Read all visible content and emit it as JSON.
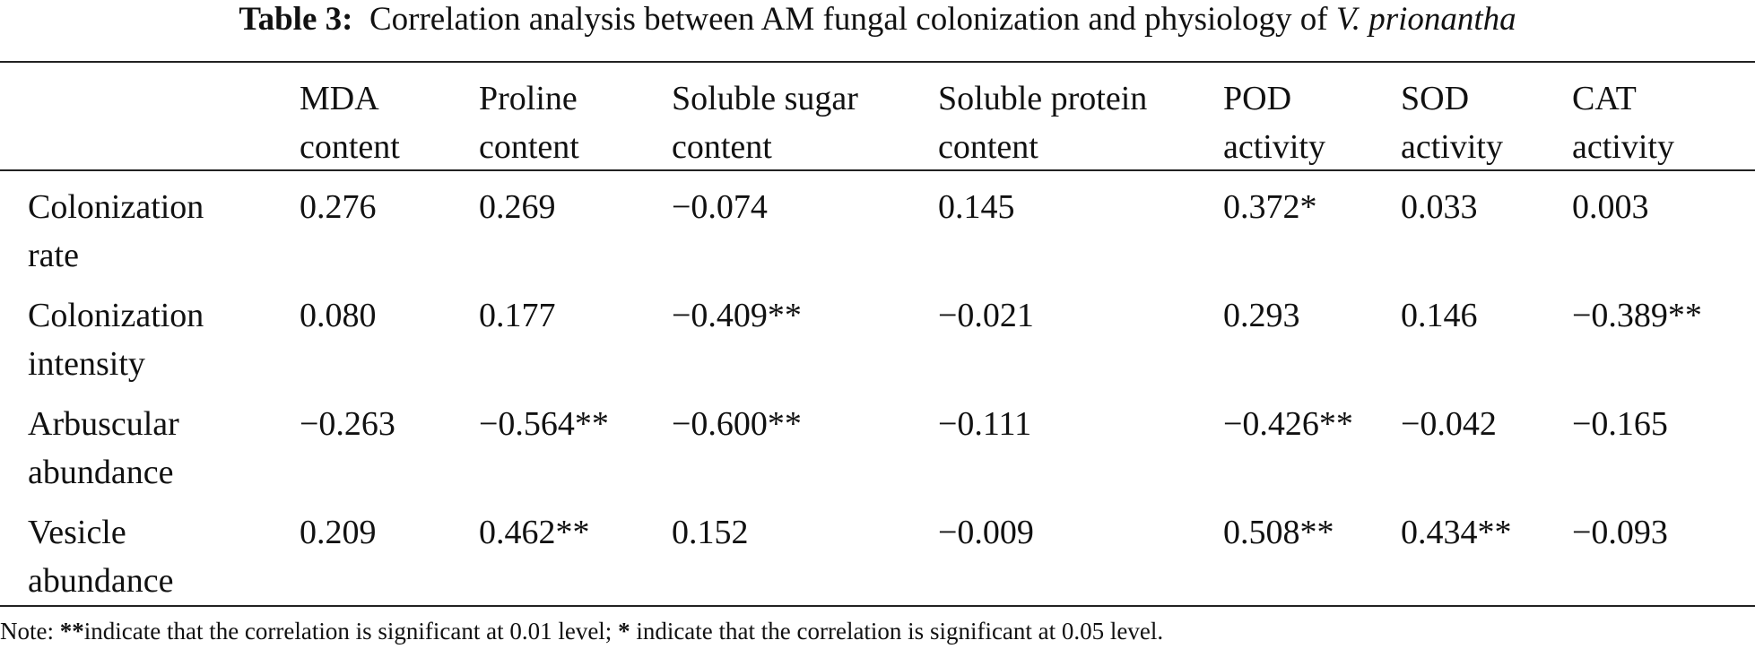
{
  "title": {
    "label": "Table 3:",
    "text": "Correlation analysis between AM fungal colonization and physiology of",
    "species": "V. prionantha"
  },
  "table": {
    "columns": [
      [
        "MDA",
        "content"
      ],
      [
        "Proline",
        "content"
      ],
      [
        "Soluble sugar",
        "content"
      ],
      [
        "Soluble protein",
        "content"
      ],
      [
        "POD",
        "activity"
      ],
      [
        "SOD",
        "activity"
      ],
      [
        "CAT",
        "activity"
      ]
    ],
    "rows": [
      {
        "label": [
          "Colonization",
          "rate"
        ],
        "cells": [
          "0.276",
          "0.269",
          "−0.074",
          "0.145",
          "0.372*",
          "0.033",
          "0.003"
        ]
      },
      {
        "label": [
          "Colonization",
          "intensity"
        ],
        "cells": [
          "0.080",
          "0.177",
          "−0.409**",
          "−0.021",
          "0.293",
          "0.146",
          "−0.389**"
        ]
      },
      {
        "label": [
          "Arbuscular",
          "abundance"
        ],
        "cells": [
          "−0.263",
          "−0.564**",
          "−0.600**",
          "−0.111",
          "−0.426**",
          "−0.042",
          "−0.165"
        ]
      },
      {
        "label": [
          "Vesicle",
          "abundance"
        ],
        "cells": [
          "0.209",
          "0.462**",
          "0.152",
          "−0.009",
          "0.508**",
          "0.434**",
          "−0.093"
        ]
      }
    ]
  },
  "note": {
    "prefix": "Note:",
    "mark1": "**",
    "text1": "indicate that the correlation is significant at 0.01 level;",
    "mark2": "*",
    "text2": "indicate that the correlation is significant at 0.05 level."
  }
}
